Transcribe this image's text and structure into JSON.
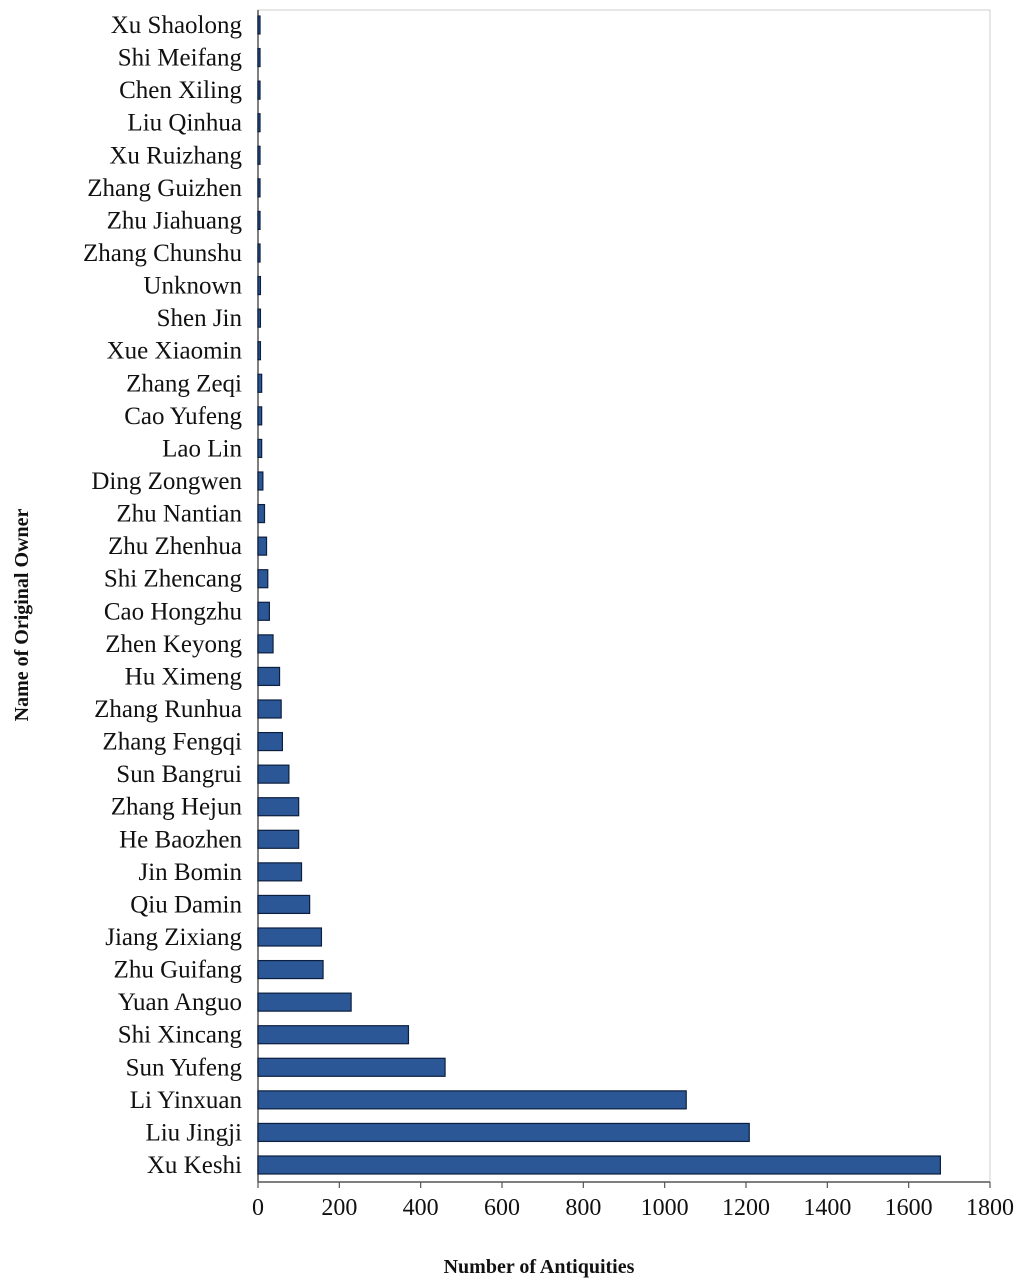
{
  "chart_data": {
    "type": "bar",
    "orientation": "horizontal",
    "title": "",
    "xlabel": "Number of Antiquities",
    "ylabel": "Name of Original Owner",
    "xlim": [
      0,
      1800
    ],
    "xticks": [
      0,
      200,
      400,
      600,
      800,
      1000,
      1200,
      1400,
      1600,
      1800
    ],
    "grid": false,
    "legend": "none",
    "bar_color": "#2b5797",
    "bar_edge_color": "#0d1f3f",
    "categories": [
      "Xu Shaolong",
      "Shi Meifang",
      "Chen Xiling",
      "Liu Qinhua",
      "Xu Ruizhang",
      "Zhang Guizhen",
      "Zhu Jiahuang",
      "Zhang Chunshu",
      "Unknown",
      "Shen Jin",
      "Xue Xiaomin",
      "Zhang Zeqi",
      "Cao Yufeng",
      "Lao Lin",
      "Ding Zongwen",
      "Zhu Nantian",
      "Zhu Zhenhua",
      "Shi Zhencang",
      "Cao Hongzhu",
      "Zhen Keyong",
      "Hu Ximeng",
      "Zhang Runhua",
      "Zhang Fengqi",
      "Sun Bangrui",
      "Zhang Hejun",
      "He Baozhen",
      "Jin Bomin",
      "Qiu Damin",
      "Jiang Zixiang",
      "Zhu Guifang",
      "Yuan Anguo",
      "Shi Xincang",
      "Sun Yufeng",
      "Li Yinxuan",
      "Liu Jingji",
      "Xu Keshi"
    ],
    "values": [
      1,
      1,
      1,
      2,
      2,
      2,
      3,
      5,
      6,
      6,
      6,
      9,
      9,
      9,
      12,
      16,
      21,
      24,
      28,
      37,
      53,
      57,
      60,
      76,
      100,
      100,
      107,
      127,
      156,
      160,
      229,
      370,
      460,
      1053,
      1208,
      1678
    ]
  }
}
